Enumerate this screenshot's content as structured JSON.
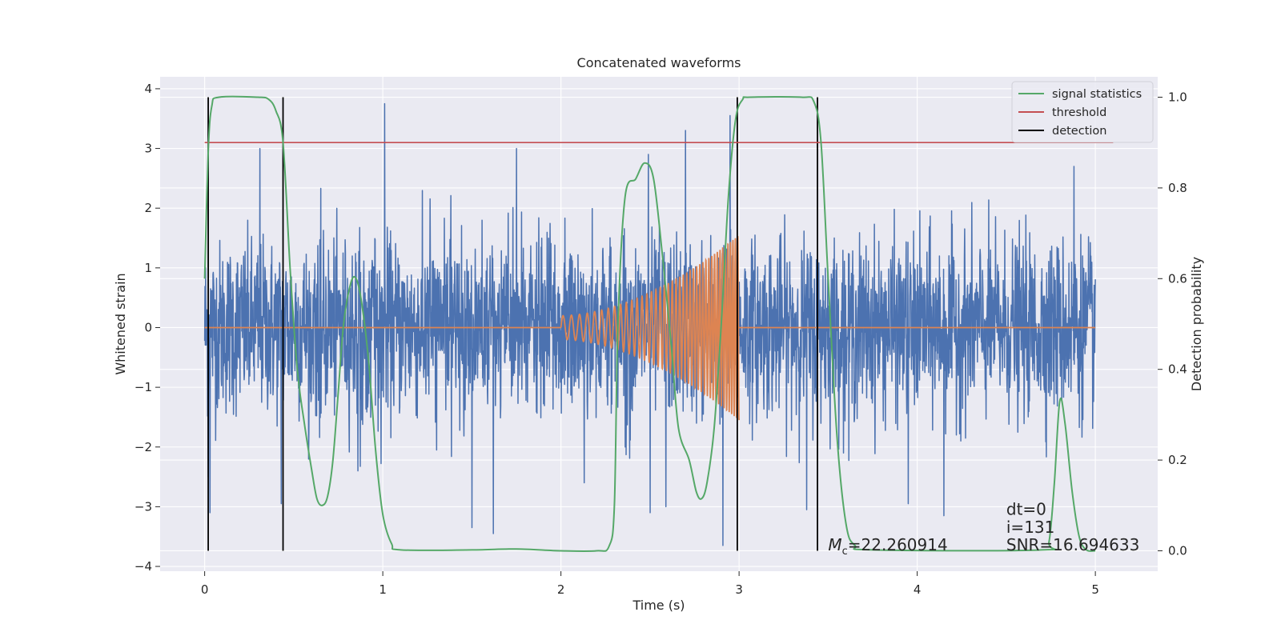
{
  "chart_data": {
    "type": "line",
    "title": "Concatenated waveforms",
    "xlabel": "Time (s)",
    "ylabel": "Whitened strain",
    "y2label": "Detection probability",
    "xlim": [
      -0.25,
      5.35
    ],
    "ylim": [
      -4.08,
      4.2
    ],
    "y2lim": [
      -0.045,
      1.045
    ],
    "xticks": [
      0,
      1,
      2,
      3,
      4,
      5
    ],
    "yticks": [
      -4,
      -3,
      -2,
      -1,
      0,
      1,
      2,
      3,
      4
    ],
    "yticklabels": [
      "−4",
      "−3",
      "−2",
      "−1",
      "0",
      "1",
      "2",
      "3",
      "4"
    ],
    "y2ticks": [
      0.0,
      0.2,
      0.4,
      0.6,
      0.8,
      1.0
    ],
    "y2ticklabels": [
      "0.0",
      "0.2",
      "0.4",
      "0.6",
      "0.8",
      "1.0"
    ],
    "grid": true,
    "legend_position": "upper right",
    "legend": [
      {
        "label": "signal statistics",
        "color": "#55a868"
      },
      {
        "label": "threshold",
        "color": "#c44e52"
      },
      {
        "label": "detection",
        "color": "#000000"
      }
    ],
    "colors": {
      "strain": "#4c72b0",
      "template": "#dd8452",
      "statistic": "#55a868",
      "threshold": "#c44e52",
      "detection": "#000000",
      "axes_background": "#eaeaf2"
    },
    "strain": {
      "x_range": [
        0,
        5
      ],
      "typical_envelope": [
        -0.7,
        0.8
      ],
      "spikes": [
        {
          "x": 0.02,
          "y": -2.5
        },
        {
          "x": 0.03,
          "y": -3.1
        },
        {
          "x": 0.31,
          "y": 3.0
        },
        {
          "x": 0.43,
          "y": -2.95
        },
        {
          "x": 0.86,
          "y": -2.4
        },
        {
          "x": 1.01,
          "y": 3.75
        },
        {
          "x": 1.5,
          "y": -3.35
        },
        {
          "x": 1.62,
          "y": -3.45
        },
        {
          "x": 1.75,
          "y": 3.0
        },
        {
          "x": 2.13,
          "y": -2.6
        },
        {
          "x": 2.49,
          "y": 2.9
        },
        {
          "x": 2.5,
          "y": -3.1
        },
        {
          "x": 2.59,
          "y": -3.0
        },
        {
          "x": 2.7,
          "y": 3.3
        },
        {
          "x": 2.91,
          "y": -3.65
        },
        {
          "x": 2.95,
          "y": 3.55
        },
        {
          "x": 3.38,
          "y": -3.05
        },
        {
          "x": 3.95,
          "y": -2.95
        },
        {
          "x": 4.15,
          "y": -3.15
        },
        {
          "x": 4.88,
          "y": 2.7
        }
      ]
    },
    "template": {
      "x_range": [
        2.0,
        3.0
      ],
      "amplitude_start": 0.2,
      "amplitude_end": 1.55,
      "frequency_start_hz": 21,
      "frequency_end_hz": 75
    },
    "statistic": {
      "points": [
        [
          0.0,
          0.6
        ],
        [
          0.02,
          0.88
        ],
        [
          0.04,
          0.98
        ],
        [
          0.08,
          1.0
        ],
        [
          0.3,
          1.0
        ],
        [
          0.36,
          0.995
        ],
        [
          0.4,
          0.97
        ],
        [
          0.44,
          0.9
        ],
        [
          0.48,
          0.62
        ],
        [
          0.52,
          0.4
        ],
        [
          0.56,
          0.28
        ],
        [
          0.6,
          0.18
        ],
        [
          0.63,
          0.115
        ],
        [
          0.66,
          0.1
        ],
        [
          0.69,
          0.12
        ],
        [
          0.72,
          0.2
        ],
        [
          0.75,
          0.35
        ],
        [
          0.78,
          0.5
        ],
        [
          0.82,
          0.59
        ],
        [
          0.85,
          0.6
        ],
        [
          0.88,
          0.55
        ],
        [
          0.92,
          0.42
        ],
        [
          0.96,
          0.22
        ],
        [
          1.0,
          0.08
        ],
        [
          1.05,
          0.015
        ],
        [
          1.1,
          0.002
        ],
        [
          1.5,
          0.002
        ],
        [
          1.75,
          0.004
        ],
        [
          2.0,
          0.0
        ],
        [
          2.2,
          0.0
        ],
        [
          2.27,
          0.01
        ],
        [
          2.3,
          0.1
        ],
        [
          2.32,
          0.5
        ],
        [
          2.36,
          0.78
        ],
        [
          2.42,
          0.82
        ],
        [
          2.47,
          0.855
        ],
        [
          2.52,
          0.82
        ],
        [
          2.57,
          0.65
        ],
        [
          2.62,
          0.45
        ],
        [
          2.66,
          0.27
        ],
        [
          2.72,
          0.2
        ],
        [
          2.76,
          0.13
        ],
        [
          2.79,
          0.115
        ],
        [
          2.82,
          0.15
        ],
        [
          2.86,
          0.27
        ],
        [
          2.9,
          0.5
        ],
        [
          2.94,
          0.78
        ],
        [
          2.98,
          0.95
        ],
        [
          3.02,
          0.995
        ],
        [
          3.06,
          1.0
        ],
        [
          3.35,
          1.0
        ],
        [
          3.42,
          0.99
        ],
        [
          3.46,
          0.9
        ],
        [
          3.5,
          0.6
        ],
        [
          3.55,
          0.25
        ],
        [
          3.6,
          0.06
        ],
        [
          3.65,
          0.012
        ],
        [
          3.75,
          0.002
        ],
        [
          4.7,
          0.002
        ],
        [
          4.74,
          0.02
        ],
        [
          4.77,
          0.15
        ],
        [
          4.8,
          0.33
        ],
        [
          4.83,
          0.28
        ],
        [
          4.87,
          0.13
        ],
        [
          4.91,
          0.03
        ],
        [
          4.95,
          0.002
        ],
        [
          5.0,
          0.0
        ]
      ]
    },
    "threshold": {
      "x": [
        0.0,
        5.1
      ],
      "value": 0.9
    },
    "detections": [
      0.02,
      0.44,
      2.99,
      3.44
    ],
    "annotations": [
      {
        "text": "dt=0",
        "x": 4.5,
        "y": -3.04
      },
      {
        "text": "i=131",
        "x": 4.5,
        "y": -3.34
      },
      {
        "text": "SNR=16.694633",
        "x": 4.5,
        "y": -3.64
      },
      {
        "symbol": "M",
        "subscript": "c",
        "text": "=22.260914",
        "x": 3.5,
        "y": -3.64
      }
    ]
  }
}
